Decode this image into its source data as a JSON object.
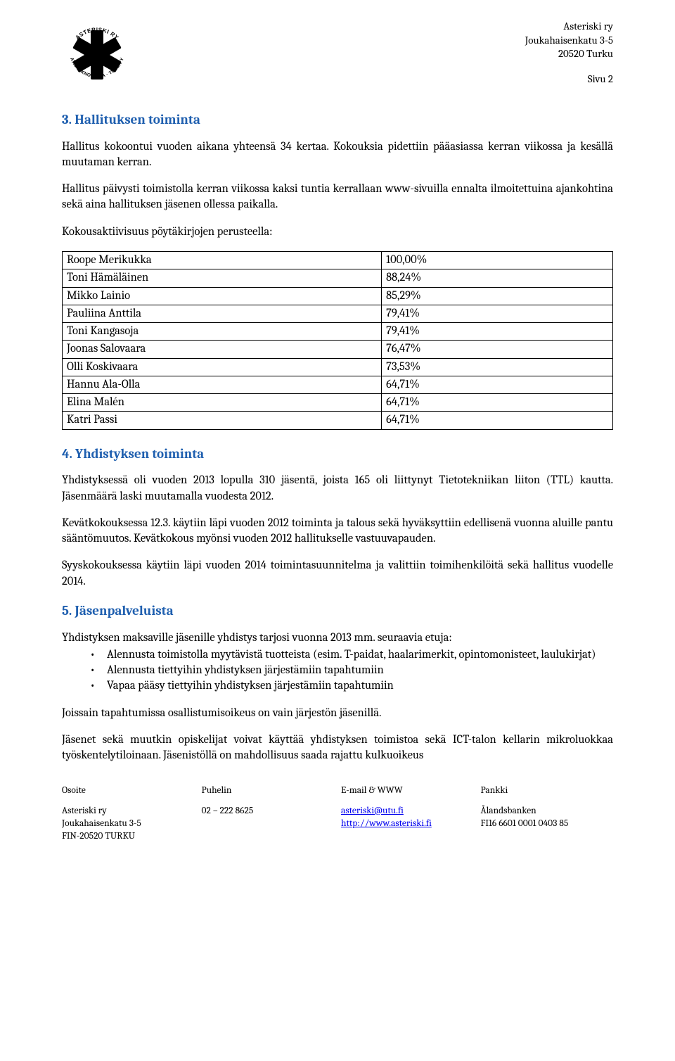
{
  "header": {
    "org_name": "Asteriski ry",
    "address_line": "Joukahaisenkatu 3-5",
    "postal": "20520 Turku",
    "page": "Sivu 2"
  },
  "sections": {
    "s3": {
      "heading": "3.  Hallituksen toiminta",
      "p1": "Hallitus kokoontui vuoden aikana yhteensä 34 kertaa. Kokouksia pidettiin pääasiassa kerran viikossa ja kesällä muutaman kerran.",
      "p2": "Hallitus päivysti toimistolla kerran viikossa kaksi tuntia kerrallaan www-sivuilla ennalta ilmoitettuina ajankohtina sekä aina hallituksen jäsenen ollessa paikalla.",
      "p3": "Kokousaktiivisuus pöytäkirjojen perusteella:",
      "table": {
        "rows": [
          [
            "Roope Merikukka",
            "100,00%"
          ],
          [
            "Toni Hämäläinen",
            "88,24%"
          ],
          [
            "Mikko Lainio",
            "85,29%"
          ],
          [
            "Pauliina Anttila",
            "79,41%"
          ],
          [
            "Toni Kangasoja",
            "79,41%"
          ],
          [
            "Joonas Salovaara",
            "76,47%"
          ],
          [
            "Olli Koskivaara",
            "73,53%"
          ],
          [
            "Hannu Ala-Olla",
            "64,71%"
          ],
          [
            "Elina Malén",
            "64,71%"
          ],
          [
            "Katri Passi",
            "64,71%"
          ]
        ]
      }
    },
    "s4": {
      "heading": "4.  Yhdistyksen toiminta",
      "p1": "Yhdistyksessä oli vuoden 2013 lopulla 310 jäsentä, joista 165 oli liittynyt Tietotekniikan liiton (TTL) kautta. Jäsenmäärä laski muutamalla vuodesta 2012.",
      "p2": "Kevätkokouksessa 12.3. käytiin läpi vuoden 2012 toiminta ja talous sekä hyväksyttiin edellisenä vuonna aluille pantu sääntömuutos. Kevätkokous myönsi vuoden 2012 hallitukselle vastuuvapauden.",
      "p3": "Syyskokouksessa käytiin läpi vuoden 2014 toimintasuunnitelma ja valittiin toimihenkilöitä sekä hallitus vuodelle 2014."
    },
    "s5": {
      "heading": "5.  Jäsenpalveluista",
      "p1": "Yhdistyksen maksaville jäsenille yhdistys tarjosi vuonna 2013 mm. seuraavia etuja:",
      "bullets": [
        "Alennusta toimistolla myytävistä tuotteista (esim. T-paidat, haalarimerkit, opintomonisteet, laulukirjat)",
        "Alennusta tiettyihin yhdistyksen järjestämiin tapahtumiin",
        "Vapaa pääsy tiettyihin yhdistyksen järjestämiin tapahtumiin"
      ],
      "p2": "Joissain tapahtumissa osallistumisoikeus on vain järjestön jäsenillä.",
      "p3": "Jäsenet sekä muutkin opiskelijat voivat käyttää yhdistyksen toimistoa sekä ICT-talon kellarin mikroluokkaa työskentelytiloinaan. Jäsenistöllä on mahdollisuus saada rajattu kulkuoikeus"
    }
  },
  "footer": {
    "heads": [
      "Osoite",
      "Puhelin",
      "E-mail & WWW",
      "Pankki"
    ],
    "col1": [
      "Asteriski ry",
      "Joukahaisenkatu 3-5",
      "FIN-20520 TURKU"
    ],
    "col2": [
      "02 – 222 8625"
    ],
    "col3": [
      "asteriski@utu.fi",
      "http://www.asteriski.fi"
    ],
    "col4": [
      "Ålandsbanken",
      "FI16 6601 0001 0403 85"
    ]
  },
  "colors": {
    "heading": "#1f5faf",
    "link": "#0000ee",
    "text": "#000000",
    "bg": "#ffffff",
    "border": "#000000"
  }
}
